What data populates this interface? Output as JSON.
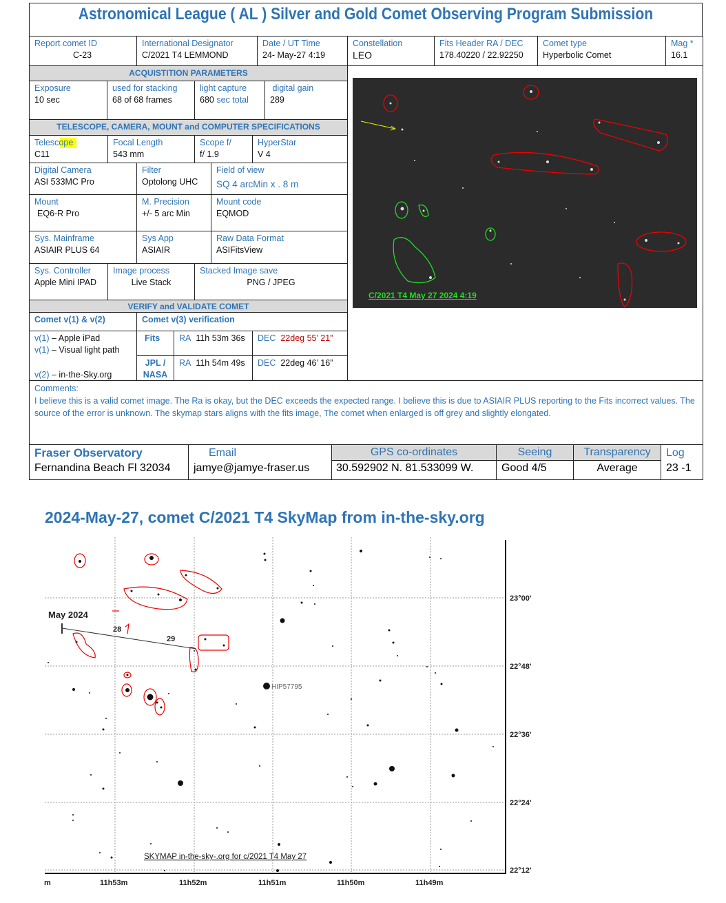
{
  "title": "Astronomical League ( AL )  Silver and Gold Comet Observing Program Submission",
  "header": [
    {
      "label": "Report comet ID",
      "value": "C-23"
    },
    {
      "label": "International Designator",
      "value": "C/2021 T4 LEMMOND"
    },
    {
      "label": "Date / UT Time",
      "value": "24- May-27 4:19"
    },
    {
      "label": "Constellation",
      "value": "LEO"
    },
    {
      "label": "Fits Header  RA / DEC",
      "value": "178.40220 / 22.92250"
    },
    {
      "label": "Comet type",
      "value": "Hyperbolic Comet"
    },
    {
      "label": "Mag *",
      "value": "16.1"
    }
  ],
  "acq": {
    "title": "ACQUISTITION PARAMETERS",
    "cells": [
      {
        "label": "Exposure",
        "value": "10 sec"
      },
      {
        "label": "used for stacking",
        "value": "68 of 68  frames"
      },
      {
        "label": "light capture",
        "value": "680",
        "value_suffix": "sec total"
      },
      {
        "label": " digital gain",
        "value": "289"
      }
    ]
  },
  "specs": {
    "title": "TELESCOPE, CAMERA, MOUNT and COMPUTER SPECIFICATIONS",
    "telescope": {
      "label": "Telescope",
      "value": "C11"
    },
    "focal": {
      "label": "Focal Length",
      "value": "543 mm"
    },
    "scope": {
      "label": "Scope f/",
      "value": "f/ 1.9"
    },
    "hyperstar": {
      "label": "HyperStar",
      "value": "V 4"
    },
    "camera": {
      "label": "Digital Camera",
      "value": "ASI 533MC Pro"
    },
    "filter": {
      "label": "Filter",
      "value": "Optolong UHC"
    },
    "fov": {
      "label": "Field of view",
      "value": "SQ 4 arcMin  x . 8 m"
    },
    "mount": {
      "label": "Mount",
      "value": "EQ6-R Pro"
    },
    "precision": {
      "label": "M. Precision",
      "value": "+/- 5 arc Min"
    },
    "mountcode": {
      "label": "Mount code",
      "value": "EQMOD"
    },
    "mainframe": {
      "label": "Sys.  Mainframe",
      "value": "ASIAIR PLUS 64"
    },
    "sysapp": {
      "label": "Sys App",
      "value": "ASIAIR"
    },
    "raw": {
      "label": "Raw Data Format",
      "value": "ASIFitsView"
    },
    "controller": {
      "label": "Sys. Controller",
      "value": "Apple Mini IPAD"
    },
    "imgproc": {
      "label": "Image process",
      "value": "Live Stack"
    },
    "stacked": {
      "label": "Stacked Image save",
      "value": "PNG / JPEG"
    }
  },
  "verify": {
    "title": "VERIFY and VALIDATE COMET",
    "col1": "Comet  v(1) & v(2)",
    "col2": "Comet v(3)  verification",
    "v1a_key": "v(1)",
    "v1a": " – Apple iPad",
    "v1b_key": "v(1)",
    "v1b": " – Visual light path",
    "v2_key": "v(2)",
    "v2": " – in-the-Sky.org",
    "fits": "Fits",
    "fits_ra": "11h 53m 36s",
    "fits_dec": "22deg 55’ 21”",
    "jpl": "JPL / NASA",
    "jpl_ra": "11h 54m 49s",
    "jpl_dec": "22deg 46’ 16”",
    "ra": "RA",
    "dec": "DEC"
  },
  "comments": {
    "label": "Comments:",
    "text": "I believe this is a valid comet image. The Ra is okay, but the DEC exceeds the expected range. I believe this is due to ASIAIR PLUS reporting to the Fits incorrect values. The source of the error is unknown. The skymap stars aligns with the fits image,  The comet when enlarged is off grey and slightly elongated."
  },
  "footer": {
    "obs": "Fraser Observatory",
    "addr": "Fernandina Beach Fl 32034",
    "email_label": "Email",
    "email": "jamye@jamye-fraser.us",
    "gps_label": "GPS co-ordinates",
    "gps": "30.592902 N.   81.533099 W.",
    "seeing_label": "Seeing",
    "seeing": "Good 4/5",
    "transp_label": "Transparency",
    "transp": "Average",
    "log_label": "Log",
    "log": "23 -1"
  },
  "image": {
    "caption": "C/2021 T4 May 27 2024  4:19"
  },
  "skymap": {
    "title": "2024-May-27, comet C/2021 T4 SkyMap from in-the-sky.org",
    "month": "May 2024",
    "day28": "28",
    "day29": "29",
    "star": "HIP57795",
    "caption": "SKYMAP in-the-sky-.org for c/2021 T4 May 27",
    "dec_ticks": [
      "23°00'",
      "22°48'",
      "22°36'",
      "22°24'",
      "22°12'"
    ],
    "ra_ticks": [
      "m",
      "11h53m",
      "11h52m",
      "11h51m",
      "11h50m",
      "11h49m"
    ]
  },
  "colors": {
    "accent": "#2e74b5",
    "header_bg": "#d9d9d9",
    "error": "#c00000",
    "annotation": "#e00000",
    "caption_green": "#22dd22"
  }
}
